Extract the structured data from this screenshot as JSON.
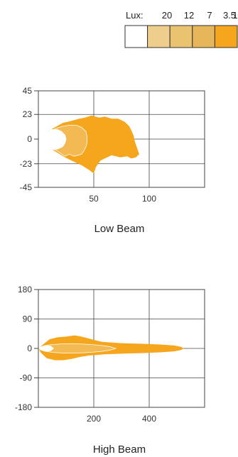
{
  "legend": {
    "label": "Lux:",
    "levels": [
      {
        "value": "20",
        "color": "#ffffff"
      },
      {
        "value": "12",
        "color": "#efcd8b"
      },
      {
        "value": "7",
        "color": "#e9c36f"
      },
      {
        "value": "3.5",
        "color": "#e6b65a"
      },
      {
        "value": "1",
        "color": "#f6a61d"
      }
    ]
  },
  "chart_data": [
    {
      "type": "area",
      "title": "Low Beam",
      "xlabel": "",
      "ylabel": "",
      "xlim": [
        0,
        150
      ],
      "ylim": [
        -45,
        45
      ],
      "xticks": [
        "50",
        "100"
      ],
      "xtick_values": [
        50,
        100
      ],
      "yticks": [
        "45",
        "23",
        "0",
        "-23",
        "-45"
      ],
      "ytick_values": [
        45,
        23,
        0,
        -23,
        -45
      ],
      "grid": true,
      "series": [
        {
          "color": "#f6a61d",
          "x": [
            0,
            3,
            8,
            15,
            22,
            30,
            37,
            42,
            48,
            55,
            60,
            66,
            72,
            78,
            82,
            84,
            86,
            87,
            89,
            91,
            88,
            84,
            80,
            74,
            66,
            56,
            52,
            50,
            46,
            40,
            32,
            24,
            16,
            8,
            4,
            0
          ],
          "y": [
            0,
            3,
            7,
            11,
            15,
            17,
            19,
            20,
            22,
            20,
            21,
            19,
            19,
            16,
            12,
            8,
            3,
            -2,
            -8,
            -14,
            -17,
            -18,
            -16,
            -17,
            -15,
            -20,
            -26,
            -32,
            -29,
            -25,
            -21,
            -17,
            -12,
            -7,
            -3,
            0
          ]
        },
        {
          "color": "#f3b953",
          "x": [
            0,
            5,
            10,
            16,
            22,
            28,
            34,
            39,
            43,
            44,
            44,
            43,
            41,
            39,
            36,
            32,
            28,
            24,
            21,
            17,
            12,
            7,
            3,
            0
          ],
          "y": [
            0,
            3,
            7,
            10,
            12,
            13,
            13,
            11,
            7,
            2,
            -3,
            -7,
            -11,
            -14,
            -15,
            -16,
            -14,
            -16,
            -14,
            -11,
            -8,
            -5,
            -2,
            0
          ]
        },
        {
          "color": "#ffffff",
          "x": [
            0,
            3,
            7,
            12,
            17,
            21,
            24,
            25,
            24,
            22,
            18,
            14,
            9,
            5,
            2,
            0
          ],
          "y": [
            0,
            3,
            6,
            9,
            9,
            7,
            4,
            0,
            -4,
            -7,
            -9,
            -10,
            -8,
            -5,
            -2,
            0
          ]
        }
      ]
    },
    {
      "type": "area",
      "title": "High Beam",
      "xlabel": "",
      "ylabel": "",
      "xlim": [
        0,
        600
      ],
      "ylim": [
        -180,
        180
      ],
      "xticks": [
        "200",
        "400"
      ],
      "xtick_values": [
        200,
        400
      ],
      "yticks": [
        "180",
        "90",
        "0",
        "-90",
        "-180"
      ],
      "ytick_values": [
        180,
        90,
        0,
        -90,
        -180
      ],
      "grid": true,
      "series": [
        {
          "color": "#f6a61d",
          "x": [
            0,
            20,
            40,
            70,
            100,
            130,
            150,
            175,
            200,
            230,
            300,
            380,
            440,
            490,
            515,
            525,
            515,
            490,
            440,
            380,
            300,
            240,
            210,
            180,
            150,
            120,
            90,
            60,
            30,
            10,
            0
          ],
          "y": [
            0,
            14,
            28,
            34,
            36,
            40,
            37,
            32,
            26,
            20,
            16,
            14,
            12,
            9,
            5,
            0,
            -5,
            -9,
            -12,
            -14,
            -16,
            -18,
            -20,
            -22,
            -26,
            -32,
            -36,
            -36,
            -30,
            -14,
            0
          ]
        },
        {
          "color": "#f3b953",
          "x": [
            0,
            20,
            50,
            90,
            140,
            190,
            230,
            260,
            280,
            260,
            230,
            190,
            140,
            90,
            50,
            20,
            0
          ],
          "y": [
            0,
            8,
            12,
            14,
            14,
            12,
            9,
            5,
            0,
            -5,
            -9,
            -12,
            -14,
            -14,
            -12,
            -8,
            0
          ]
        },
        {
          "color": "#ffffff",
          "x": [
            0,
            10,
            25,
            45,
            55,
            45,
            25,
            10,
            0
          ],
          "y": [
            0,
            5,
            8,
            7,
            0,
            -7,
            -8,
            -5,
            0
          ]
        }
      ]
    }
  ]
}
